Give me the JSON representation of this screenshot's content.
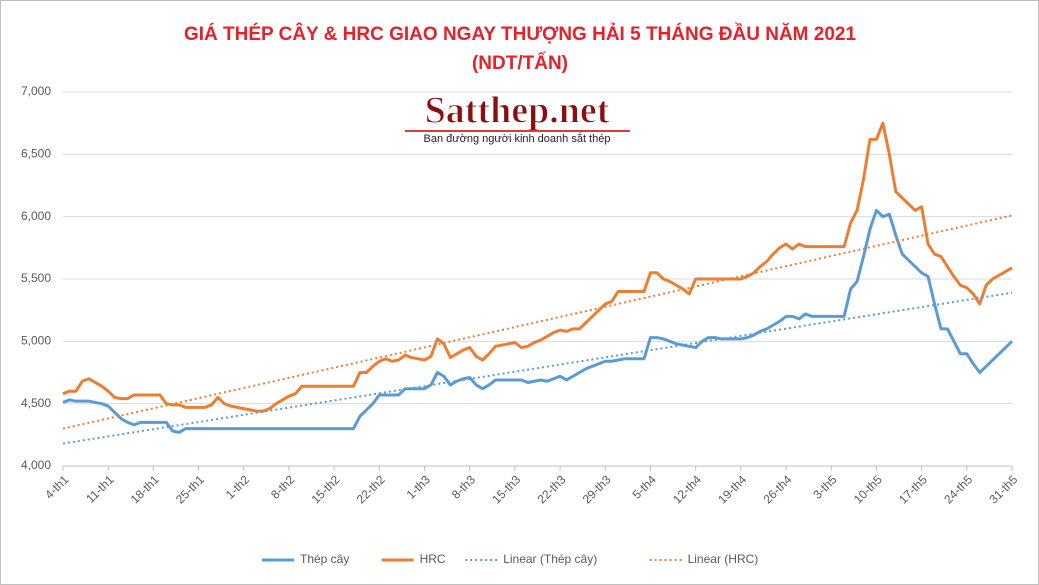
{
  "chart_data": {
    "type": "line",
    "title": "GIÁ THÉP CÂY & HRC GIAO NGAY THƯỢNG HẢI 5 THÁNG ĐẦU NĂM 2021",
    "subtitle": "(NDT/TẤN)",
    "watermark": {
      "title": "Satthep.net",
      "subtitle": "Bạn đường người kinh doanh sắt thép"
    },
    "categories": [
      "4-th1",
      null,
      null,
      null,
      null,
      null,
      null,
      "11-th1",
      null,
      null,
      null,
      null,
      null,
      null,
      "18-th1",
      null,
      null,
      null,
      null,
      null,
      null,
      "25-th1",
      null,
      null,
      null,
      null,
      null,
      null,
      "1-th2",
      null,
      null,
      null,
      null,
      null,
      null,
      "8-th2",
      null,
      null,
      null,
      null,
      null,
      null,
      "15-th2",
      null,
      null,
      null,
      null,
      null,
      null,
      "22-th2",
      null,
      null,
      null,
      null,
      null,
      null,
      "1-th3",
      null,
      null,
      null,
      null,
      null,
      null,
      "8-th3",
      null,
      null,
      null,
      null,
      null,
      null,
      "15-th3",
      null,
      null,
      null,
      null,
      null,
      null,
      "22-th3",
      null,
      null,
      null,
      null,
      null,
      null,
      "29-th3",
      null,
      null,
      null,
      null,
      null,
      null,
      "5-th4",
      null,
      null,
      null,
      null,
      null,
      null,
      "12-th4",
      null,
      null,
      null,
      null,
      null,
      null,
      "19-th4",
      null,
      null,
      null,
      null,
      null,
      null,
      "26-th4",
      null,
      null,
      null,
      null,
      null,
      null,
      "3-th5",
      null,
      null,
      null,
      null,
      null,
      null,
      "10-th5",
      null,
      null,
      null,
      null,
      null,
      null,
      "17-th5",
      null,
      null,
      null,
      null,
      null,
      null,
      "24-th5",
      null,
      null,
      null,
      null,
      null,
      null,
      "31-th5"
    ],
    "series": [
      {
        "name": "Thép cây",
        "color": "#5b9bd5",
        "dash": "solid",
        "values": [
          4510,
          4530,
          4520,
          4520,
          4520,
          4510,
          4500,
          4480,
          4430,
          4380,
          4350,
          4330,
          4350,
          4350,
          4350,
          4350,
          4350,
          4280,
          4270,
          4300,
          4300,
          4300,
          4300,
          4300,
          4300,
          4300,
          4300,
          4300,
          4300,
          4300,
          4300,
          4300,
          4300,
          4300,
          4300,
          4300,
          4300,
          4300,
          4300,
          4300,
          4300,
          4300,
          4300,
          4300,
          4300,
          4300,
          4400,
          4450,
          4500,
          4570,
          4570,
          4570,
          4570,
          4620,
          4620,
          4620,
          4620,
          4650,
          4750,
          4720,
          4650,
          4680,
          4700,
          4710,
          4650,
          4620,
          4650,
          4690,
          4690,
          4690,
          4690,
          4690,
          4670,
          4680,
          4690,
          4680,
          4700,
          4720,
          4690,
          4720,
          4750,
          4780,
          4800,
          4820,
          4840,
          4840,
          4850,
          4860,
          4860,
          4860,
          4860,
          5030,
          5030,
          5020,
          5000,
          4980,
          4970,
          4960,
          4950,
          5000,
          5030,
          5030,
          5020,
          5020,
          5020,
          5020,
          5030,
          5050,
          5080,
          5100,
          5130,
          5160,
          5200,
          5200,
          5180,
          5220,
          5200,
          5200,
          5200,
          5200,
          5200,
          5200,
          5420,
          5480,
          5680,
          5900,
          6050,
          6000,
          6020,
          5850,
          5700,
          5650,
          5600,
          5550,
          5520,
          5300,
          5100,
          5100,
          5000,
          4900,
          4900,
          4820,
          4750,
          4800,
          4850,
          4900,
          4950,
          5000
        ]
      },
      {
        "name": "HRC",
        "color": "#ed7d31",
        "dash": "solid",
        "values": [
          4580,
          4600,
          4600,
          4680,
          4700,
          4670,
          4640,
          4600,
          4550,
          4540,
          4540,
          4570,
          4570,
          4570,
          4570,
          4570,
          4500,
          4490,
          4490,
          4470,
          4470,
          4470,
          4470,
          4490,
          4550,
          4500,
          4480,
          4470,
          4460,
          4450,
          4440,
          4440,
          4460,
          4500,
          4530,
          4560,
          4580,
          4640,
          4640,
          4640,
          4640,
          4640,
          4640,
          4640,
          4640,
          4640,
          4750,
          4750,
          4800,
          4840,
          4860,
          4840,
          4850,
          4890,
          4870,
          4860,
          4850,
          4880,
          5020,
          4980,
          4870,
          4900,
          4930,
          4950,
          4880,
          4850,
          4900,
          4960,
          4970,
          4980,
          4990,
          4950,
          4960,
          4990,
          5010,
          5040,
          5070,
          5090,
          5080,
          5100,
          5100,
          5150,
          5200,
          5250,
          5300,
          5320,
          5400,
          5400,
          5400,
          5400,
          5400,
          5550,
          5550,
          5500,
          5480,
          5450,
          5420,
          5380,
          5500,
          5500,
          5500,
          5500,
          5500,
          5500,
          5500,
          5500,
          5520,
          5550,
          5600,
          5640,
          5700,
          5750,
          5780,
          5740,
          5780,
          5760,
          5760,
          5760,
          5760,
          5760,
          5760,
          5760,
          5950,
          6050,
          6300,
          6620,
          6620,
          6750,
          6500,
          6200,
          6150,
          6100,
          6050,
          6080,
          5780,
          5700,
          5680,
          5600,
          5520,
          5450,
          5430,
          5380,
          5300,
          5450,
          5500,
          5530,
          5560,
          5590
        ]
      },
      {
        "name": "Linear (Thép cây)",
        "color": "#5b9bd5",
        "dash": "dotted",
        "x": [
          "4-th1",
          "31-th5"
        ],
        "values": [
          4180,
          5390
        ]
      },
      {
        "name": "Linear (HRC)",
        "color": "#ed7d31",
        "dash": "dotted",
        "x": [
          "4-th1",
          "31-th5"
        ],
        "values": [
          4300,
          6010
        ]
      }
    ],
    "ylim": [
      4000,
      7000
    ],
    "yticks": [
      {
        "value": 4000,
        "label": "4,000"
      },
      {
        "value": 4500,
        "label": "4,500"
      },
      {
        "value": 5000,
        "label": "5,000"
      },
      {
        "value": 5500,
        "label": "5,500"
      },
      {
        "value": 6000,
        "label": "6,000"
      },
      {
        "value": 6500,
        "label": "6,500"
      },
      {
        "value": 7000,
        "label": "7,000"
      }
    ],
    "grid": true,
    "legend": "bottom"
  }
}
